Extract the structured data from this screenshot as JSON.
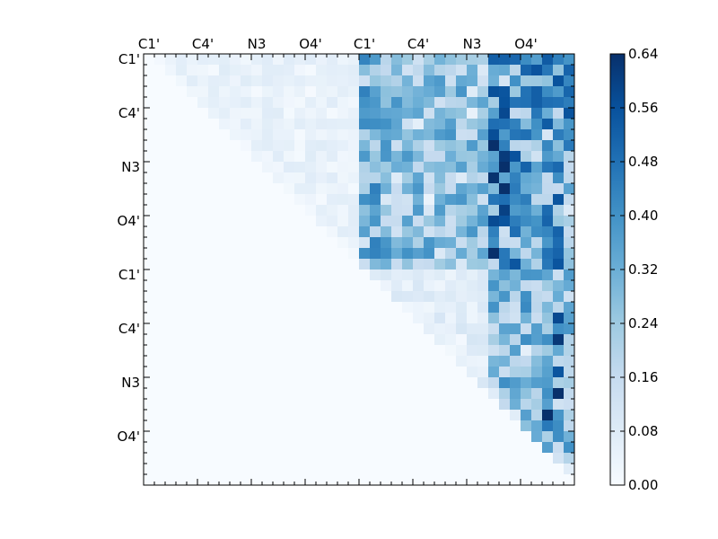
{
  "chart_data": {
    "type": "heatmap",
    "title": "",
    "xlabel": "",
    "ylabel": "",
    "n": 40,
    "x_tick_labels": [
      "C1'",
      "C4'",
      "N3",
      "O4'",
      "C1'",
      "C4'",
      "N3",
      "O4'"
    ],
    "x_tick_positions": [
      0,
      5,
      10,
      15,
      20,
      25,
      30,
      35
    ],
    "x_ticks_side": "top",
    "y_tick_labels": [
      "C1'",
      "C4'",
      "N3",
      "O4'",
      "C1'",
      "C4'",
      "N3",
      "O4'"
    ],
    "y_tick_positions": [
      0,
      5,
      10,
      15,
      20,
      25,
      30,
      35
    ],
    "colormap": "Blues",
    "color_low": "#f7fbff",
    "color_high": "#08306b",
    "vmin": 0.0,
    "vmax": 0.64,
    "colorbar_ticks": [
      "0.00",
      "0.08",
      "0.16",
      "0.24",
      "0.32",
      "0.40",
      "0.48",
      "0.56",
      "0.64"
    ],
    "colorbar_position": "right",
    "grid": false,
    "structure": "upper-triangular",
    "blocks": [
      {
        "rows": [
          0,
          19
        ],
        "cols": [
          20,
          31
        ],
        "level": 0.26
      },
      {
        "rows": [
          0,
          19
        ],
        "cols": [
          32,
          39
        ],
        "level": 0.36
      },
      {
        "rows": [
          0,
          19
        ],
        "cols": [
          0,
          19
        ],
        "level": 0.05
      },
      {
        "rows": [
          20,
          39
        ],
        "cols": [
          20,
          31
        ],
        "level": 0.07
      },
      {
        "rows": [
          20,
          39
        ],
        "cols": [
          32,
          39
        ],
        "level": 0.27
      }
    ],
    "hot_cells": [
      {
        "row": 0,
        "col": 33,
        "value": 0.52
      },
      {
        "row": 3,
        "col": 33,
        "value": 0.55
      },
      {
        "row": 5,
        "col": 33,
        "value": 0.58
      },
      {
        "row": 14,
        "col": 33,
        "value": 0.6
      },
      {
        "row": 4,
        "col": 38,
        "value": 0.48
      },
      {
        "row": 10,
        "col": 38,
        "value": 0.5
      },
      {
        "row": 24,
        "col": 38,
        "value": 0.58
      },
      {
        "row": 26,
        "col": 38,
        "value": 0.62
      },
      {
        "row": 29,
        "col": 38,
        "value": 0.55
      },
      {
        "row": 31,
        "col": 38,
        "value": 0.64
      },
      {
        "row": 33,
        "col": 37,
        "value": 0.64
      },
      {
        "row": 34,
        "col": 37,
        "value": 0.46
      }
    ]
  }
}
